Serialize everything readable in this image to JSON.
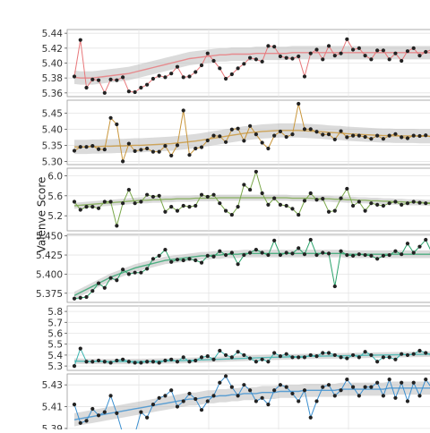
{
  "chart_data": {
    "type": "line",
    "ylabel": "Valenve Score",
    "grid": true,
    "smoothing": "loess band (gray)",
    "x_count": 60,
    "panels": [
      {
        "color": "#e8777a",
        "ylim": [
          5.355,
          5.445
        ],
        "yticks": [
          "5.36",
          "5.38",
          "5.40",
          "5.42",
          "5.44"
        ],
        "ytick_values": [
          5.36,
          5.38,
          5.4,
          5.42,
          5.44
        ],
        "values": [
          5.382,
          5.431,
          5.367,
          5.378,
          5.377,
          5.36,
          5.378,
          5.377,
          5.381,
          5.362,
          5.361,
          5.367,
          5.371,
          5.379,
          5.383,
          5.381,
          5.386,
          5.395,
          5.381,
          5.382,
          5.388,
          5.397,
          5.413,
          5.403,
          5.393,
          5.379,
          5.385,
          5.393,
          5.399,
          5.407,
          5.405,
          5.402,
          5.423,
          5.422,
          5.409,
          5.407,
          5.406,
          5.409,
          5.382,
          5.413,
          5.418,
          5.405,
          5.423,
          5.41,
          5.413,
          5.432,
          5.418,
          5.42,
          5.41,
          5.405,
          5.417,
          5.417,
          5.405,
          5.413,
          5.403,
          5.416,
          5.42,
          5.41,
          5.415,
          5.418
        ],
        "trend": [
          5.381,
          5.38,
          5.38,
          5.38,
          5.381,
          5.382,
          5.383,
          5.384,
          5.385,
          5.386,
          5.388,
          5.39,
          5.392,
          5.394,
          5.396,
          5.398,
          5.4,
          5.402,
          5.404,
          5.406,
          5.407,
          5.408,
          5.409,
          5.41,
          5.411,
          5.411,
          5.412,
          5.412,
          5.412,
          5.412,
          5.413,
          5.413,
          5.413,
          5.413,
          5.413,
          5.413,
          5.414,
          5.414,
          5.414,
          5.414,
          5.414,
          5.414,
          5.414,
          5.414,
          5.414,
          5.414,
          5.414,
          5.414,
          5.414,
          5.414,
          5.414,
          5.414,
          5.414,
          5.414,
          5.414,
          5.414,
          5.414,
          5.414,
          5.414,
          5.414
        ],
        "band": 0.009
      },
      {
        "color": "#c9963a",
        "ylim": [
          5.29,
          5.49
        ],
        "yticks": [
          "5.30",
          "5.35",
          "5.40",
          "5.45"
        ],
        "ytick_values": [
          5.3,
          5.35,
          5.4,
          5.45
        ],
        "values": [
          5.333,
          5.345,
          5.345,
          5.348,
          5.338,
          5.337,
          5.435,
          5.415,
          5.3,
          5.355,
          5.332,
          5.336,
          5.34,
          5.33,
          5.33,
          5.348,
          5.318,
          5.35,
          5.458,
          5.32,
          5.34,
          5.344,
          5.365,
          5.38,
          5.378,
          5.36,
          5.399,
          5.402,
          5.364,
          5.41,
          5.384,
          5.358,
          5.34,
          5.38,
          5.393,
          5.376,
          5.384,
          5.479,
          5.4,
          5.4,
          5.392,
          5.383,
          5.384,
          5.368,
          5.394,
          5.375,
          5.38,
          5.38,
          5.376,
          5.37,
          5.38,
          5.37,
          5.38,
          5.385,
          5.375,
          5.372,
          5.38,
          5.379,
          5.381,
          5.376
        ],
        "trend": [
          5.345,
          5.345,
          5.345,
          5.346,
          5.346,
          5.347,
          5.347,
          5.348,
          5.348,
          5.349,
          5.35,
          5.35,
          5.351,
          5.352,
          5.353,
          5.354,
          5.355,
          5.357,
          5.359,
          5.361,
          5.363,
          5.366,
          5.369,
          5.372,
          5.375,
          5.378,
          5.381,
          5.384,
          5.387,
          5.389,
          5.391,
          5.393,
          5.394,
          5.395,
          5.396,
          5.396,
          5.396,
          5.396,
          5.395,
          5.394,
          5.393,
          5.392,
          5.39,
          5.389,
          5.388,
          5.386,
          5.385,
          5.384,
          5.383,
          5.382,
          5.381,
          5.38,
          5.38,
          5.379,
          5.379,
          5.379,
          5.379,
          5.378,
          5.378,
          5.378
        ],
        "band": 0.022
      },
      {
        "color": "#7aa84a",
        "ylim": [
          4.9,
          6.15
        ],
        "yticks": [
          "5.2",
          "5.6",
          "6.0"
        ],
        "ytick_values": [
          5.2,
          5.6,
          6.0
        ],
        "values": [
          5.48,
          5.32,
          5.38,
          5.38,
          5.35,
          5.48,
          5.48,
          5.0,
          5.45,
          5.72,
          5.45,
          5.48,
          5.62,
          5.58,
          5.6,
          5.28,
          5.38,
          5.3,
          5.4,
          5.38,
          5.4,
          5.62,
          5.58,
          5.62,
          5.45,
          5.3,
          5.22,
          5.38,
          5.82,
          5.72,
          6.08,
          5.65,
          5.42,
          5.55,
          5.42,
          5.4,
          5.34,
          5.22,
          5.5,
          5.65,
          5.52,
          5.54,
          5.28,
          5.3,
          5.55,
          5.74,
          5.4,
          5.48,
          5.3,
          5.45,
          5.42,
          5.4,
          5.45,
          5.48,
          5.42,
          5.45,
          5.48,
          5.46,
          5.45,
          5.44
        ],
        "trend": [
          5.4,
          5.41,
          5.42,
          5.43,
          5.44,
          5.45,
          5.46,
          5.47,
          5.48,
          5.49,
          5.5,
          5.51,
          5.51,
          5.52,
          5.52,
          5.53,
          5.53,
          5.54,
          5.54,
          5.54,
          5.55,
          5.55,
          5.55,
          5.55,
          5.56,
          5.56,
          5.56,
          5.56,
          5.56,
          5.56,
          5.56,
          5.56,
          5.56,
          5.56,
          5.56,
          5.56,
          5.55,
          5.55,
          5.55,
          5.55,
          5.54,
          5.54,
          5.54,
          5.53,
          5.53,
          5.52,
          5.52,
          5.51,
          5.51,
          5.5,
          5.5,
          5.49,
          5.49,
          5.48,
          5.48,
          5.47,
          5.47,
          5.47,
          5.46,
          5.46
        ],
        "band": 0.06
      },
      {
        "color": "#2aa36b",
        "ylim": [
          5.363,
          5.452
        ],
        "yticks": [
          "5.375",
          "5.400",
          "5.425",
          "5.450"
        ],
        "ytick_values": [
          5.375,
          5.4,
          5.425,
          5.45
        ],
        "values": [
          5.368,
          5.369,
          5.37,
          5.378,
          5.388,
          5.382,
          5.395,
          5.392,
          5.406,
          5.4,
          5.402,
          5.402,
          5.407,
          5.42,
          5.424,
          5.432,
          5.416,
          5.419,
          5.418,
          5.42,
          5.418,
          5.415,
          5.424,
          5.423,
          5.43,
          5.425,
          5.428,
          5.413,
          5.425,
          5.428,
          5.432,
          5.428,
          5.425,
          5.444,
          5.425,
          5.428,
          5.427,
          5.434,
          5.426,
          5.445,
          5.425,
          5.428,
          5.427,
          5.384,
          5.43,
          5.425,
          5.424,
          5.426,
          5.425,
          5.424,
          5.42,
          5.424,
          5.425,
          5.43,
          5.426,
          5.44,
          5.428,
          5.436,
          5.445,
          5.428
        ],
        "trend": [
          5.372,
          5.376,
          5.38,
          5.384,
          5.388,
          5.392,
          5.396,
          5.399,
          5.402,
          5.405,
          5.408,
          5.41,
          5.412,
          5.414,
          5.416,
          5.418,
          5.419,
          5.42,
          5.421,
          5.422,
          5.423,
          5.424,
          5.424,
          5.425,
          5.425,
          5.426,
          5.426,
          5.426,
          5.427,
          5.427,
          5.427,
          5.427,
          5.427,
          5.427,
          5.427,
          5.427,
          5.427,
          5.427,
          5.427,
          5.427,
          5.427,
          5.427,
          5.427,
          5.427,
          5.427,
          5.426,
          5.426,
          5.426,
          5.426,
          5.426,
          5.426,
          5.426,
          5.426,
          5.426,
          5.426,
          5.426,
          5.426,
          5.426,
          5.426,
          5.426
        ],
        "band": 0.005
      },
      {
        "color": "#3ab5b0",
        "ylim": [
          5.26,
          5.85
        ],
        "yticks": [
          "5.3",
          "5.4",
          "5.5",
          "5.6",
          "5.7",
          "5.8"
        ],
        "ytick_values": [
          5.3,
          5.4,
          5.5,
          5.6,
          5.7,
          5.8
        ],
        "values": [
          5.3,
          5.46,
          5.34,
          5.34,
          5.35,
          5.34,
          5.33,
          5.35,
          5.36,
          5.34,
          5.33,
          5.33,
          5.34,
          5.34,
          5.33,
          5.35,
          5.36,
          5.34,
          5.38,
          5.34,
          5.35,
          5.38,
          5.39,
          5.36,
          5.44,
          5.4,
          5.38,
          5.43,
          5.4,
          5.37,
          5.34,
          5.36,
          5.34,
          5.42,
          5.39,
          5.41,
          5.38,
          5.38,
          5.38,
          5.4,
          5.39,
          5.42,
          5.42,
          5.4,
          5.38,
          5.37,
          5.4,
          5.38,
          5.43,
          5.4,
          5.34,
          5.38,
          5.38,
          5.36,
          5.41,
          5.4,
          5.41,
          5.44,
          5.42,
          5.4
        ],
        "trend": [
          5.345,
          5.344,
          5.343,
          5.342,
          5.342,
          5.341,
          5.341,
          5.341,
          5.341,
          5.341,
          5.342,
          5.342,
          5.343,
          5.344,
          5.345,
          5.346,
          5.347,
          5.349,
          5.35,
          5.352,
          5.354,
          5.356,
          5.358,
          5.36,
          5.362,
          5.364,
          5.366,
          5.368,
          5.37,
          5.372,
          5.374,
          5.376,
          5.378,
          5.38,
          5.381,
          5.383,
          5.385,
          5.386,
          5.388,
          5.389,
          5.39,
          5.391,
          5.392,
          5.393,
          5.394,
          5.395,
          5.396,
          5.397,
          5.398,
          5.399,
          5.4,
          5.401,
          5.402,
          5.403,
          5.404,
          5.405,
          5.406,
          5.407,
          5.408,
          5.409
        ],
        "band": 0.025
      },
      {
        "color": "#3a8fd0",
        "ylim": [
          5.385,
          5.44
        ],
        "yticks": [
          "5.39",
          "5.41",
          "5.43"
        ],
        "ytick_values": [
          5.39,
          5.41,
          5.43
        ],
        "values": [
          5.412,
          5.395,
          5.397,
          5.408,
          5.402,
          5.405,
          5.42,
          5.404,
          5.385,
          5.385,
          5.385,
          5.405,
          5.4,
          5.412,
          5.418,
          5.42,
          5.425,
          5.41,
          5.415,
          5.422,
          5.417,
          5.407,
          5.415,
          5.42,
          5.432,
          5.438,
          5.428,
          5.42,
          5.43,
          5.425,
          5.415,
          5.418,
          5.412,
          5.425,
          5.43,
          5.428,
          5.422,
          5.415,
          5.425,
          5.4,
          5.415,
          5.428,
          5.43,
          5.42,
          5.425,
          5.435,
          5.428,
          5.42,
          5.428,
          5.428,
          5.432,
          5.42,
          5.435,
          5.418,
          5.432,
          5.415,
          5.432,
          5.42,
          5.435,
          5.427
        ],
        "trend": [
          5.398,
          5.399,
          5.4,
          5.401,
          5.402,
          5.403,
          5.404,
          5.405,
          5.406,
          5.407,
          5.408,
          5.409,
          5.41,
          5.411,
          5.412,
          5.413,
          5.414,
          5.415,
          5.416,
          5.417,
          5.417,
          5.418,
          5.419,
          5.419,
          5.42,
          5.42,
          5.421,
          5.421,
          5.422,
          5.422,
          5.422,
          5.423,
          5.423,
          5.423,
          5.424,
          5.424,
          5.424,
          5.424,
          5.425,
          5.425,
          5.425,
          5.425,
          5.425,
          5.425,
          5.426,
          5.426,
          5.426,
          5.426,
          5.426,
          5.426,
          5.426,
          5.426,
          5.427,
          5.427,
          5.427,
          5.427,
          5.427,
          5.427,
          5.427,
          5.427
        ],
        "band": 0.006
      }
    ]
  }
}
